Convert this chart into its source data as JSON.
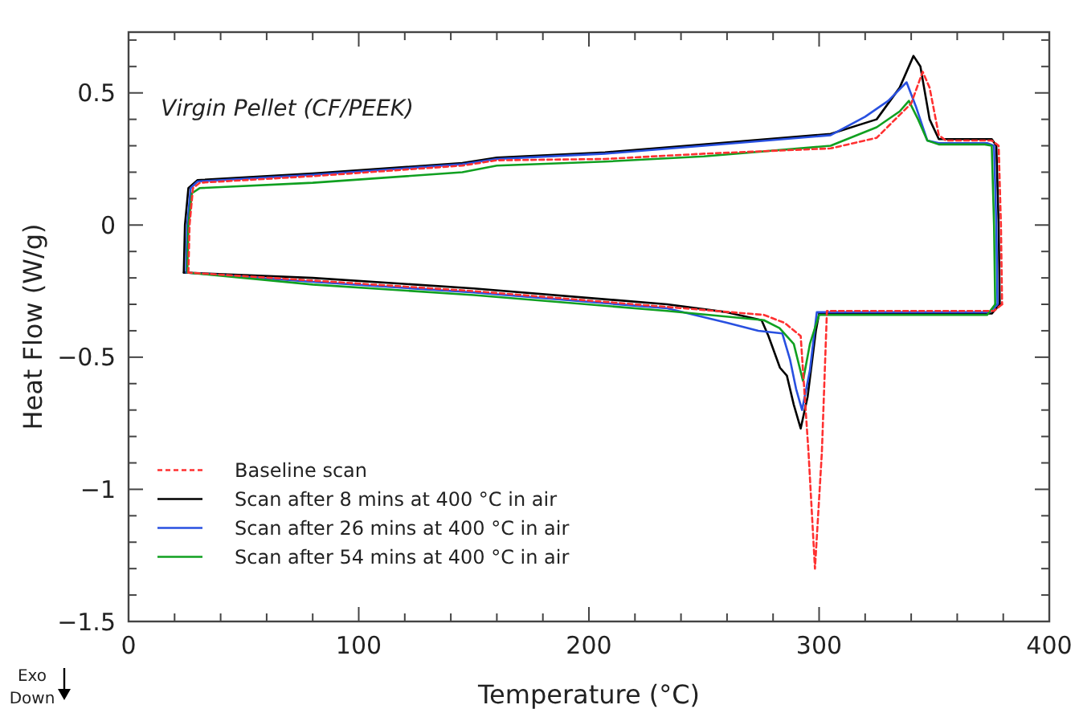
{
  "chart_data": {
    "type": "line",
    "title": "Virgin Pellet (CF/PEEK)",
    "xlabel": "Temperature (°C)",
    "ylabel": "Heat Flow (W/g)",
    "annotations": [
      "Exo Down"
    ],
    "xlim": [
      0,
      400
    ],
    "ylim": [
      -1.5,
      0.73
    ],
    "xticks": [
      0,
      {
        "value": 20,
        "label": null
      },
      {
        "value": 40,
        "label": null
      },
      {
        "value": 60,
        "label": null
      },
      {
        "value": 80,
        "label": null
      },
      100,
      {
        "value": 120,
        "label": null
      },
      {
        "value": 140,
        "label": null
      },
      {
        "value": 160,
        "label": null
      },
      {
        "value": 180,
        "label": null
      },
      200,
      {
        "value": 220,
        "label": null
      },
      {
        "value": 240,
        "label": null
      },
      {
        "value": 260,
        "label": null
      },
      {
        "value": 280,
        "label": null
      },
      300,
      {
        "value": 320,
        "label": null
      },
      {
        "value": 340,
        "label": null
      },
      {
        "value": 360,
        "label": null
      },
      {
        "value": 380,
        "label": null
      },
      400
    ],
    "yticks": [
      {
        "value": -1.5,
        "label": "−1.5"
      },
      {
        "value": -1.4,
        "label": null
      },
      {
        "value": -1.3,
        "label": null
      },
      {
        "value": -1.2,
        "label": null
      },
      {
        "value": -1.1,
        "label": null
      },
      {
        "value": -1,
        "label": "−1"
      },
      {
        "value": -0.9,
        "label": null
      },
      {
        "value": -0.8,
        "label": null
      },
      {
        "value": -0.7,
        "label": null
      },
      {
        "value": -0.6,
        "label": null
      },
      {
        "value": -0.5,
        "label": "−0.5"
      },
      {
        "value": -0.4,
        "label": null
      },
      {
        "value": -0.3,
        "label": null
      },
      {
        "value": -0.2,
        "label": null
      },
      {
        "value": -0.1,
        "label": null
      },
      0,
      {
        "value": 0.1,
        "label": null
      },
      {
        "value": 0.2,
        "label": null
      },
      {
        "value": 0.3,
        "label": null
      },
      {
        "value": 0.4,
        "label": null
      },
      0.5,
      {
        "value": 0.6,
        "label": null
      },
      {
        "value": 0.7,
        "label": null
      }
    ],
    "grid": false,
    "legend": "bottom left",
    "marker": "none",
    "series": [
      {
        "name": "Baseline scan",
        "color": "#ff3030",
        "line_style": "dashed",
        "x": [
          26,
          26.5,
          28,
          31,
          80,
          145,
          160,
          207,
          250,
          305,
          325,
          340,
          345,
          348,
          352,
          355,
          375,
          378,
          379,
          379.5
        ],
        "values": [
          -0.18,
          0,
          0.14,
          0.16,
          0.185,
          0.225,
          0.245,
          0.25,
          0.27,
          0.29,
          0.33,
          0.46,
          0.58,
          0.52,
          0.34,
          0.32,
          0.32,
          0.3,
          0,
          -0.3
        ]
      },
      {
        "name": "Scan after 8 mins at 400 °C in air",
        "color": "#000000",
        "line_style": "solid",
        "x": [
          24,
          24.5,
          26,
          30,
          80,
          145,
          160,
          207,
          250,
          305,
          325,
          335,
          341,
          344,
          348,
          352,
          375,
          377,
          378,
          378.5
        ],
        "values": [
          -0.18,
          0,
          0.14,
          0.17,
          0.195,
          0.235,
          0.255,
          0.275,
          0.305,
          0.345,
          0.4,
          0.52,
          0.64,
          0.6,
          0.4,
          0.325,
          0.325,
          0.3,
          0,
          -0.3
        ]
      },
      {
        "name": "Scan after 26 mins at 400 °C in air",
        "color": "#2850e0",
        "line_style": "solid",
        "x": [
          25,
          25.5,
          27,
          30,
          80,
          145,
          160,
          207,
          250,
          305,
          320,
          330,
          338,
          342,
          347,
          352,
          373,
          376,
          377,
          377.5
        ],
        "values": [
          -0.18,
          0,
          0.14,
          0.165,
          0.19,
          0.23,
          0.25,
          0.27,
          0.3,
          0.34,
          0.41,
          0.47,
          0.54,
          0.45,
          0.32,
          0.31,
          0.31,
          0.3,
          0,
          -0.3
        ]
      },
      {
        "name": "Scan after 54 mins at 400 °C in air",
        "color": "#10a020",
        "line_style": "solid",
        "x": [
          25.5,
          26,
          27.5,
          31,
          80,
          145,
          160,
          207,
          250,
          305,
          325,
          335,
          339,
          343,
          347,
          352,
          372,
          375,
          376,
          376.5
        ],
        "values": [
          -0.18,
          0,
          0.12,
          0.14,
          0.16,
          0.2,
          0.225,
          0.24,
          0.26,
          0.3,
          0.37,
          0.43,
          0.47,
          0.4,
          0.32,
          0.305,
          0.305,
          0.3,
          0,
          -0.3
        ]
      },
      {
        "color": "#ff3030",
        "line_style": "dashed",
        "x": [
          379.5,
          376,
          340,
          306,
          303.4,
          301.2,
          298.2,
          295.4,
          292,
          285,
          276,
          234,
          150,
          80,
          26
        ],
        "values": [
          -0.3,
          -0.325,
          -0.325,
          -0.325,
          -0.325,
          -0.86,
          -1.3,
          -0.86,
          -0.42,
          -0.37,
          -0.34,
          -0.31,
          -0.25,
          -0.21,
          -0.18
        ]
      },
      {
        "color": "#000000",
        "line_style": "solid",
        "x": [
          378.5,
          375,
          340,
          300,
          298.6,
          295,
          292,
          289,
          286,
          283,
          278,
          275,
          260,
          234,
          150,
          80,
          24
        ],
        "values": [
          -0.3,
          -0.335,
          -0.335,
          -0.335,
          -0.4,
          -0.65,
          -0.77,
          -0.68,
          -0.57,
          -0.54,
          -0.42,
          -0.36,
          -0.33,
          -0.3,
          -0.24,
          -0.2,
          -0.18
        ]
      },
      {
        "color": "#2850e0",
        "line_style": "solid",
        "x": [
          377.5,
          374,
          340,
          299,
          296,
          292.6,
          290,
          287.4,
          284,
          273.6,
          260,
          234,
          150,
          80,
          25
        ],
        "values": [
          -0.3,
          -0.33,
          -0.33,
          -0.33,
          -0.55,
          -0.7,
          -0.62,
          -0.51,
          -0.41,
          -0.4,
          -0.37,
          -0.315,
          -0.255,
          -0.215,
          -0.18
        ]
      },
      {
        "color": "#10a020",
        "line_style": "solid",
        "x": [
          376.5,
          373,
          340,
          300,
          296,
          293,
          289,
          282.8,
          276,
          234,
          150,
          80,
          25.5
        ],
        "values": [
          -0.3,
          -0.34,
          -0.34,
          -0.34,
          -0.45,
          -0.59,
          -0.45,
          -0.39,
          -0.36,
          -0.325,
          -0.265,
          -0.225,
          -0.18
        ]
      }
    ]
  }
}
